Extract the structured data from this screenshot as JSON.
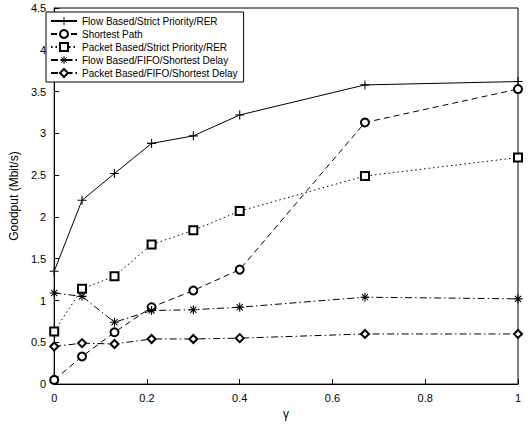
{
  "chart_data": {
    "type": "line",
    "x_label": "γ",
    "y_label": "Goodput (Mbit/s)",
    "x": [
      0,
      0.06,
      0.13,
      0.21,
      0.3,
      0.4,
      0.67,
      1
    ],
    "xlim": [
      0,
      1
    ],
    "xticks": [
      0,
      0.2,
      0.4,
      0.6,
      0.8,
      1
    ],
    "ylim": [
      0,
      4.5
    ],
    "yticks": [
      0,
      0.5,
      1,
      1.5,
      2,
      2.5,
      3,
      3.5,
      4,
      4.5
    ],
    "grid": false,
    "legend": "upper left",
    "series": [
      {
        "name": "Flow Based/Strict Priority/RER",
        "color": "#000000",
        "marker": "plus",
        "line_style": "solid",
        "values": [
          1.35,
          2.2,
          2.52,
          2.88,
          2.97,
          3.22,
          3.58,
          3.62
        ]
      },
      {
        "name": "Shortest Path",
        "color": "#000000",
        "marker": "circle",
        "line_style": "dashed",
        "values": [
          0.05,
          0.33,
          0.62,
          0.92,
          1.12,
          1.37,
          3.13,
          3.53
        ]
      },
      {
        "name": "Packet Based/Strict Priority/RER",
        "color": "#000000",
        "marker": "square",
        "line_style": "dotted",
        "values": [
          0.63,
          1.14,
          1.29,
          1.67,
          1.84,
          2.07,
          2.49,
          2.71
        ]
      },
      {
        "name": "Flow Based/FIFO/Shortest Delay",
        "color": "#000000",
        "marker": "star",
        "line_style": "dashdot",
        "values": [
          1.09,
          1.05,
          0.74,
          0.88,
          0.89,
          0.92,
          1.04,
          1.02
        ]
      },
      {
        "name": "Packet Based/FIFO/Shortest Delay",
        "color": "#000000",
        "marker": "diamond",
        "line_style": "dashdot",
        "values": [
          0.45,
          0.49,
          0.48,
          0.54,
          0.54,
          0.55,
          0.6,
          0.6
        ]
      }
    ]
  }
}
